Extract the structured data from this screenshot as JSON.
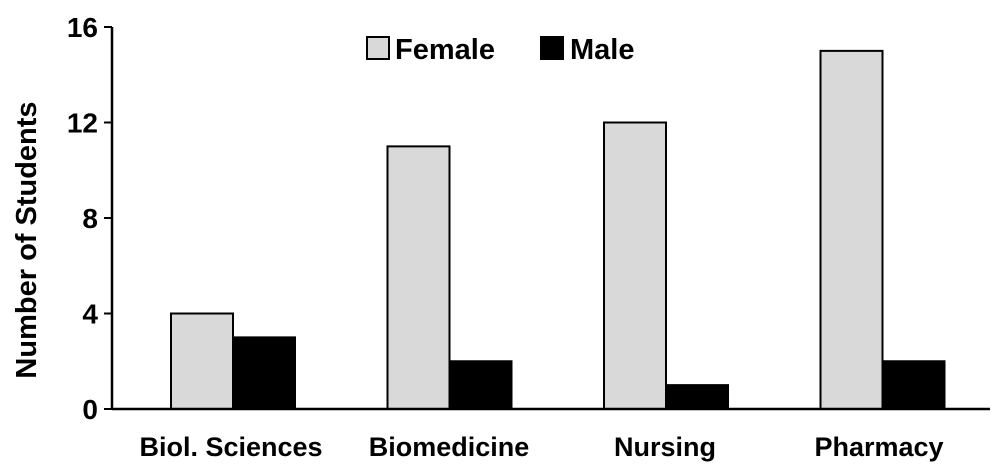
{
  "chart_data": {
    "type": "bar",
    "title": "",
    "xlabel": "",
    "ylabel": "Number of Students",
    "ylim": [
      0,
      16
    ],
    "yticks": [
      0,
      4,
      8,
      12,
      16
    ],
    "grid": false,
    "legend_position": "top-center",
    "categories": [
      "Biol. Sciences",
      "Biomedicine",
      "Nursing",
      "Pharmacy"
    ],
    "series": [
      {
        "name": "Female",
        "values": [
          4,
          11,
          12,
          15
        ],
        "color": "#d9d9d9"
      },
      {
        "name": "Male",
        "values": [
          3,
          2,
          1,
          2
        ],
        "color": "#000000"
      }
    ]
  }
}
